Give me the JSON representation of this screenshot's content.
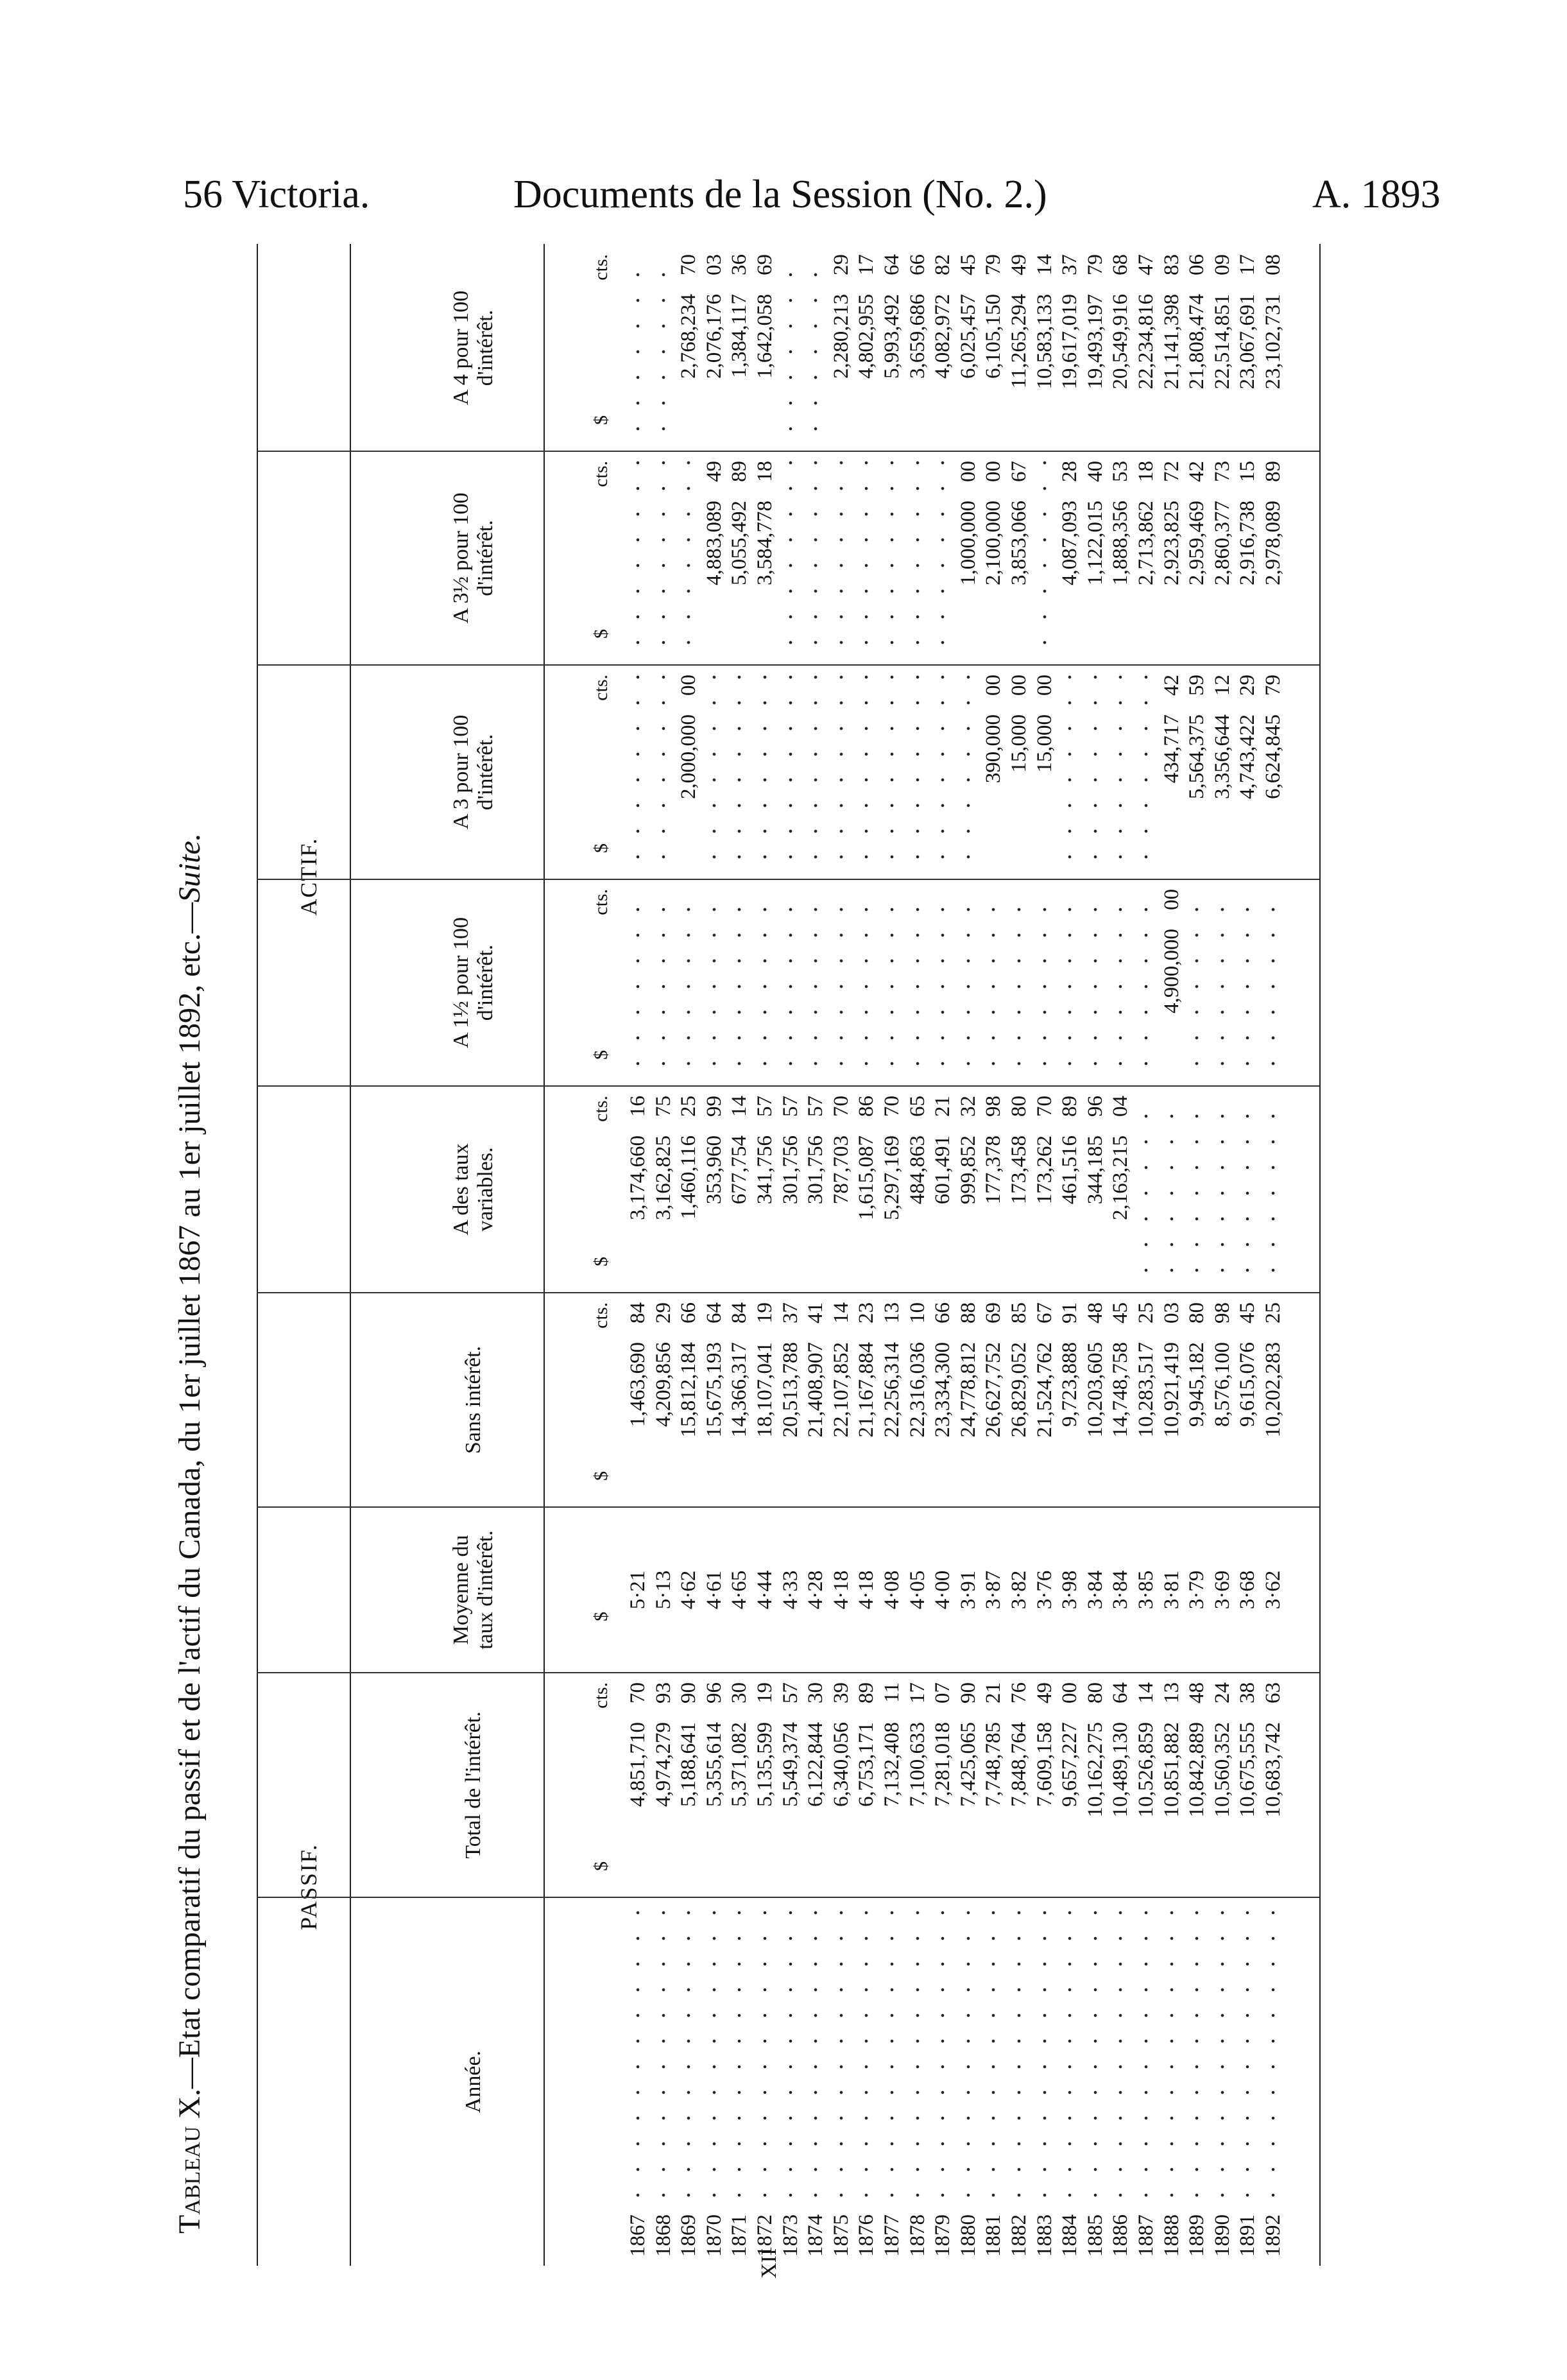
{
  "page_header": {
    "left": "56 Victoria.",
    "center": "Documents de la Session (No. 2.)",
    "right": "A. 1893"
  },
  "title": {
    "label": "Tableau",
    "rest": " X.—Etat comparatif du passif et de l'actif du Canada, du 1er juillet 1867 au 1er juillet 1892, etc.—",
    "suite": "Suite."
  },
  "groups": {
    "passif": "PASSIF.",
    "actif": "ACTIF."
  },
  "columns": [
    {
      "key": "annee",
      "label": "Année."
    },
    {
      "key": "total",
      "label": "Total de l'intérêt."
    },
    {
      "key": "moyenne",
      "label": "Moyenne du taux d'intérêt."
    },
    {
      "key": "sans",
      "label": "Sans intérêt."
    },
    {
      "key": "variables",
      "label": "A des taux variables."
    },
    {
      "key": "a1_5",
      "label": "A 1½ pour 100 d'intérêt."
    },
    {
      "key": "a3",
      "label": "A 3 pour 100 d'intérêt."
    },
    {
      "key": "a3_5",
      "label": "A 3½ pour 100 d'intérêt."
    },
    {
      "key": "a4",
      "label": "A 4 pour 100 d'intérêt."
    }
  ],
  "units": {
    "dollar": "$",
    "cents": "cts."
  },
  "rows": [
    [
      "1867",
      "4,851,710 70",
      "5·21",
      "1,463,690 84",
      "3,174,660 16",
      null,
      null,
      null,
      null
    ],
    [
      "1868",
      "4,974,279 93",
      "5·13",
      "4,209,856 29",
      "3,162,825 75",
      null,
      null,
      null,
      null
    ],
    [
      "1869",
      "5,188,641 90",
      "4·62",
      "15,812,184 66",
      "1,460,116 25",
      null,
      "2,000,000 00",
      null,
      "2,768,234 70"
    ],
    [
      "1870",
      "5,355,614 96",
      "4·61",
      "15,675,193 64",
      "353,960 99",
      null,
      null,
      "4,883,089 49",
      "2,076,176 03"
    ],
    [
      "1871",
      "5,371,082 30",
      "4·65",
      "14,366,317 84",
      "677,754 14",
      null,
      null,
      "5,055,492 89",
      "1,384,117 36"
    ],
    [
      "1872",
      "5,135,599 19",
      "4·44",
      "18,107,041 19",
      "341,756 57",
      null,
      null,
      "3,584,778 18",
      "1,642,058 69"
    ],
    [
      "1873",
      "5,549,374 57",
      "4·33",
      "20,513,788 37",
      "301,756 57",
      null,
      null,
      null,
      null
    ],
    [
      "1874",
      "6,122,844 30",
      "4·28",
      "21,408,907 41",
      "301,756 57",
      null,
      null,
      null,
      null
    ],
    [
      "1875",
      "6,340,056 39",
      "4·18",
      "22,107,852 14",
      "787,703 70",
      null,
      null,
      null,
      "2,280,213 29"
    ],
    [
      "1876",
      "6,753,171 89",
      "4·18",
      "21,167,884 23",
      "1,615,087 86",
      null,
      null,
      null,
      "4,802,955 17"
    ],
    [
      "1877",
      "7,132,408 11",
      "4·08",
      "22,256,314 13",
      "5,297,169 70",
      null,
      null,
      null,
      "5,993,492 64"
    ],
    [
      "1878",
      "7,100,633 17",
      "4·05",
      "22,316,036 10",
      "484,863 65",
      null,
      null,
      null,
      "3,659,686 66"
    ],
    [
      "1879",
      "7,281,018 07",
      "4·00",
      "23,334,300 66",
      "601,491 21",
      null,
      null,
      null,
      "4,082,972 82"
    ],
    [
      "1880",
      "7,425,065 90",
      "3·91",
      "24,778,812 88",
      "999,852 32",
      null,
      null,
      "1,000,000 00",
      "6,025,457 45"
    ],
    [
      "1881",
      "7,748,785 21",
      "3·87",
      "26,627,752 69",
      "177,378 98",
      null,
      "390,000 00",
      "2,100,000 00",
      "6,105,150 79"
    ],
    [
      "1882",
      "7,848,764 76",
      "3·82",
      "26,829,052 85",
      "173,458 80",
      null,
      "15,000 00",
      "3,853,066 67",
      "11,265,294 49"
    ],
    [
      "1883",
      "7,609,158 49",
      "3·76",
      "21,524,762 67",
      "173,262 70",
      null,
      "15,000 00",
      null,
      "10,583,133 14"
    ],
    [
      "1884",
      "9,657,227 00",
      "3·98",
      "9,723,888 91",
      "461,516 89",
      null,
      null,
      "4,087,093 28",
      "19,617,019 37"
    ],
    [
      "1885",
      "10,162,275 80",
      "3·84",
      "10,203,605 48",
      "344,185 96",
      null,
      null,
      "1,122,015 40",
      "19,493,197 79"
    ],
    [
      "1886",
      "10,489,130 64",
      "3·84",
      "14,748,758 45",
      "2,163,215 04",
      null,
      null,
      "1,888,356 53",
      "20,549,916 68"
    ],
    [
      "1887",
      "10,526,859 14",
      "3·85",
      "10,283,517 25",
      null,
      null,
      null,
      "2,713,862 18",
      "22,234,816 47"
    ],
    [
      "1888",
      "10,851,882 13",
      "3·81",
      "10,921,419 03",
      null,
      "4,900,000 00",
      "434,717 42",
      "2,923,825 72",
      "21,141,398 83"
    ],
    [
      "1889",
      "10,842,889 48",
      "3·79",
      "9,945,182 80",
      null,
      null,
      "5,564,375 59",
      "2,959,469 42",
      "21,808,474 06"
    ],
    [
      "1890",
      "10,560,352 24",
      "3·69",
      "8,576,100 98",
      null,
      null,
      "3,356,644 12",
      "2,860,377 73",
      "22,514,851 09"
    ],
    [
      "1891",
      "10,675,555 38",
      "3·68",
      "9,615,076 45",
      null,
      null,
      "4,743,422 29",
      "2,916,738 15",
      "23,067,691 17"
    ],
    [
      "1892",
      "10,683,742 63",
      "3·62",
      "10,202,283 25",
      null,
      null,
      "6,624,845 79",
      "2,978,089 89",
      "23,102,731 08"
    ]
  ],
  "page_number": "XII"
}
